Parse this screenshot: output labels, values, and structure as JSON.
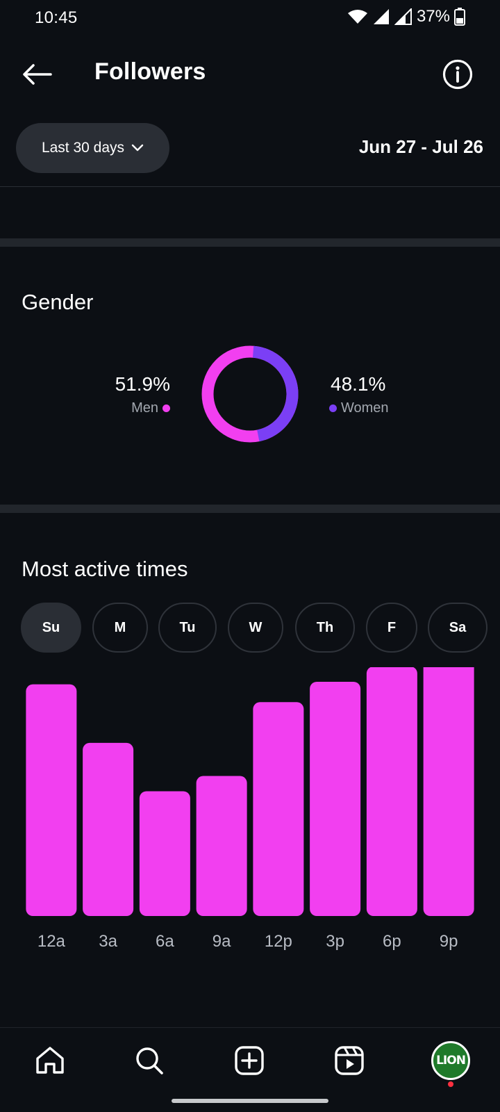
{
  "status_bar": {
    "time": "10:45",
    "battery": "37%",
    "icons": [
      "wifi-icon",
      "signal-icon",
      "signal-icon",
      "battery-icon"
    ]
  },
  "header": {
    "title": "Followers",
    "back_icon": "back-arrow-icon",
    "info_icon": "info-icon"
  },
  "filter": {
    "range_label": "Last 30 days",
    "date_range": "Jun 27 - Jul 26"
  },
  "gender": {
    "title": "Gender",
    "men": {
      "percent": "51.9%",
      "label": "Men",
      "color": "#f23ff0",
      "value": 51.9
    },
    "women": {
      "percent": "48.1%",
      "label": "Women",
      "color": "#7b3ff5",
      "value": 48.1
    }
  },
  "active_times": {
    "title": "Most active times",
    "days": [
      {
        "label": "Su",
        "active": true
      },
      {
        "label": "M",
        "active": false
      },
      {
        "label": "Tu",
        "active": false
      },
      {
        "label": "W",
        "active": false
      },
      {
        "label": "Th",
        "active": false
      },
      {
        "label": "F",
        "active": false
      },
      {
        "label": "Sa",
        "active": false
      }
    ]
  },
  "chart_data": {
    "type": "bar",
    "categories": [
      "12a",
      "3a",
      "6a",
      "9a",
      "12p",
      "3p",
      "6p",
      "9p"
    ],
    "values": [
      91,
      68,
      49,
      55,
      84,
      92,
      98,
      101
    ],
    "ylim": [
      0,
      101
    ],
    "grid": false,
    "bar_color": "#f23ff0"
  },
  "bottom_nav": {
    "items": [
      "home-icon",
      "search-icon",
      "create-icon",
      "reels-icon"
    ],
    "avatar_text": "LION"
  }
}
